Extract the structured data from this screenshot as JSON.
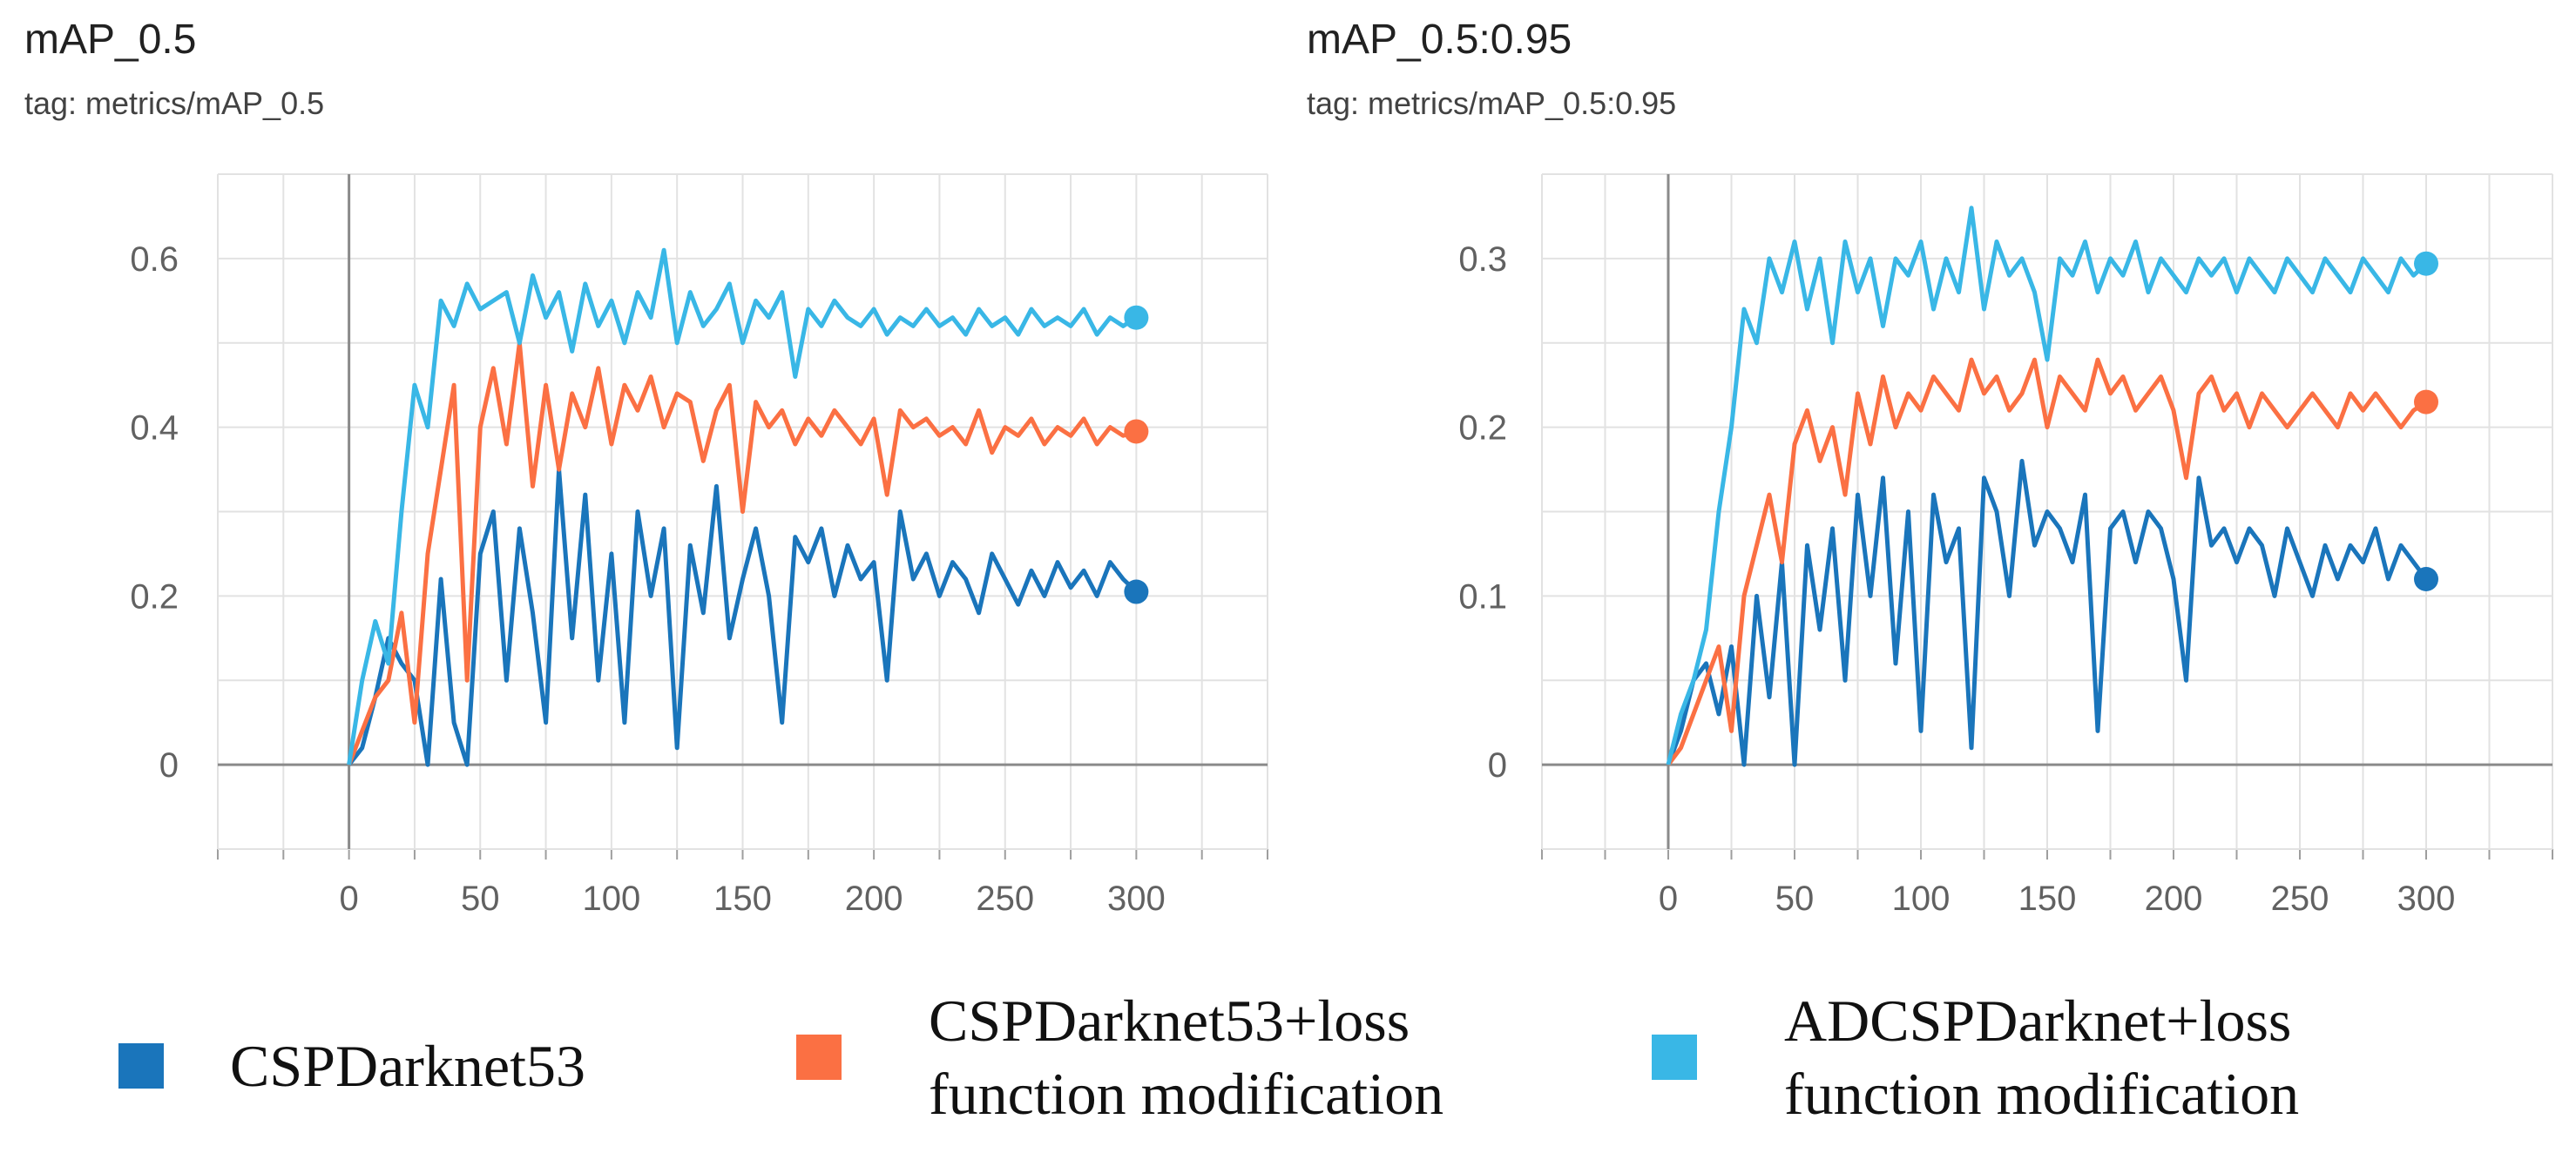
{
  "charts": [
    {
      "title": "mAP_0.5",
      "tag": "tag: metrics/mAP_0.5"
    },
    {
      "title": "mAP_0.5:0.95",
      "tag": "tag: metrics/mAP_0.5:0.95"
    }
  ],
  "legend": [
    {
      "name": "CSPDarknet53",
      "lines": [
        "CSPDarknet53"
      ],
      "color": "#1a75bb"
    },
    {
      "name": "CSPDarknet53+loss function modification",
      "lines": [
        "CSPDarknet53+loss",
        "function modification"
      ],
      "color": "#fb7043"
    },
    {
      "name": "ADCSPDarknet+loss function modification",
      "lines": [
        "ADCSPDarknet+loss",
        "function modification"
      ],
      "color": "#39b7e6"
    }
  ],
  "chart_data": [
    {
      "type": "line",
      "title": "mAP_0.5",
      "subtitle": "tag: metrics/mAP_0.5",
      "xlabel": "",
      "ylabel": "",
      "xlim": [
        -50,
        350
      ],
      "ylim": [
        -0.1,
        0.7
      ],
      "xticks": [
        0,
        50,
        100,
        150,
        200,
        250,
        300
      ],
      "xtick_labels": [
        "0",
        "50",
        "100",
        "150",
        "200",
        "250",
        "300"
      ],
      "yticks": [
        0,
        0.2,
        0.4,
        0.6
      ],
      "ytick_labels": [
        "0",
        "0.2",
        "0.4",
        "0.6"
      ],
      "grid": true,
      "series": [
        {
          "name": "CSPDarknet53",
          "color": "#1a75bb",
          "x": [
            0,
            5,
            10,
            15,
            20,
            25,
            30,
            35,
            40,
            45,
            50,
            55,
            60,
            65,
            70,
            75,
            80,
            85,
            90,
            95,
            100,
            105,
            110,
            115,
            120,
            125,
            130,
            135,
            140,
            145,
            150,
            155,
            160,
            165,
            170,
            175,
            180,
            185,
            190,
            195,
            200,
            205,
            210,
            215,
            220,
            225,
            230,
            235,
            240,
            245,
            250,
            255,
            260,
            265,
            270,
            275,
            280,
            285,
            290,
            295,
            300
          ],
          "values": [
            0.0,
            0.02,
            0.08,
            0.15,
            0.12,
            0.1,
            0.0,
            0.22,
            0.05,
            0.0,
            0.25,
            0.3,
            0.1,
            0.28,
            0.18,
            0.05,
            0.35,
            0.15,
            0.32,
            0.1,
            0.25,
            0.05,
            0.3,
            0.2,
            0.28,
            0.02,
            0.26,
            0.18,
            0.33,
            0.15,
            0.22,
            0.28,
            0.2,
            0.05,
            0.27,
            0.24,
            0.28,
            0.2,
            0.26,
            0.22,
            0.24,
            0.1,
            0.3,
            0.22,
            0.25,
            0.2,
            0.24,
            0.22,
            0.18,
            0.25,
            0.22,
            0.19,
            0.23,
            0.2,
            0.24,
            0.21,
            0.23,
            0.2,
            0.24,
            0.22,
            0.205
          ]
        },
        {
          "name": "CSPDarknet53+loss function modification",
          "color": "#fb7043",
          "x": [
            0,
            5,
            10,
            15,
            20,
            25,
            30,
            35,
            40,
            45,
            50,
            55,
            60,
            65,
            70,
            75,
            80,
            85,
            90,
            95,
            100,
            105,
            110,
            115,
            120,
            125,
            130,
            135,
            140,
            145,
            150,
            155,
            160,
            165,
            170,
            175,
            180,
            185,
            190,
            195,
            200,
            205,
            210,
            215,
            220,
            225,
            230,
            235,
            240,
            245,
            250,
            255,
            260,
            265,
            270,
            275,
            280,
            285,
            290,
            295,
            300
          ],
          "values": [
            0.0,
            0.04,
            0.08,
            0.1,
            0.18,
            0.05,
            0.25,
            0.35,
            0.45,
            0.1,
            0.4,
            0.47,
            0.38,
            0.5,
            0.33,
            0.45,
            0.35,
            0.44,
            0.4,
            0.47,
            0.38,
            0.45,
            0.42,
            0.46,
            0.4,
            0.44,
            0.43,
            0.36,
            0.42,
            0.45,
            0.3,
            0.43,
            0.4,
            0.42,
            0.38,
            0.41,
            0.39,
            0.42,
            0.4,
            0.38,
            0.41,
            0.32,
            0.42,
            0.4,
            0.41,
            0.39,
            0.4,
            0.38,
            0.42,
            0.37,
            0.4,
            0.39,
            0.41,
            0.38,
            0.4,
            0.39,
            0.41,
            0.38,
            0.4,
            0.39,
            0.395
          ]
        },
        {
          "name": "ADCSPDarknet+loss function modification",
          "color": "#39b7e6",
          "x": [
            0,
            5,
            10,
            15,
            20,
            25,
            30,
            35,
            40,
            45,
            50,
            55,
            60,
            65,
            70,
            75,
            80,
            85,
            90,
            95,
            100,
            105,
            110,
            115,
            120,
            125,
            130,
            135,
            140,
            145,
            150,
            155,
            160,
            165,
            170,
            175,
            180,
            185,
            190,
            195,
            200,
            205,
            210,
            215,
            220,
            225,
            230,
            235,
            240,
            245,
            250,
            255,
            260,
            265,
            270,
            275,
            280,
            285,
            290,
            295,
            300
          ],
          "values": [
            0.0,
            0.1,
            0.17,
            0.12,
            0.3,
            0.45,
            0.4,
            0.55,
            0.52,
            0.57,
            0.54,
            0.55,
            0.56,
            0.5,
            0.58,
            0.53,
            0.56,
            0.49,
            0.57,
            0.52,
            0.55,
            0.5,
            0.56,
            0.53,
            0.61,
            0.5,
            0.56,
            0.52,
            0.54,
            0.57,
            0.5,
            0.55,
            0.53,
            0.56,
            0.46,
            0.54,
            0.52,
            0.55,
            0.53,
            0.52,
            0.54,
            0.51,
            0.53,
            0.52,
            0.54,
            0.52,
            0.53,
            0.51,
            0.54,
            0.52,
            0.53,
            0.51,
            0.54,
            0.52,
            0.53,
            0.52,
            0.54,
            0.51,
            0.53,
            0.52,
            0.53
          ]
        }
      ]
    },
    {
      "type": "line",
      "title": "mAP_0.5:0.95",
      "subtitle": "tag: metrics/mAP_0.5:0.95",
      "xlabel": "",
      "ylabel": "",
      "xlim": [
        -50,
        350
      ],
      "ylim": [
        -0.05,
        0.35
      ],
      "xticks": [
        0,
        50,
        100,
        150,
        200,
        250,
        300
      ],
      "xtick_labels": [
        "0",
        "50",
        "100",
        "150",
        "200",
        "250",
        "300"
      ],
      "yticks": [
        0,
        0.1,
        0.2,
        0.3
      ],
      "ytick_labels": [
        "0",
        "0.1",
        "0.2",
        "0.3"
      ],
      "grid": true,
      "series": [
        {
          "name": "CSPDarknet53",
          "color": "#1a75bb",
          "x": [
            0,
            5,
            10,
            15,
            20,
            25,
            30,
            35,
            40,
            45,
            50,
            55,
            60,
            65,
            70,
            75,
            80,
            85,
            90,
            95,
            100,
            105,
            110,
            115,
            120,
            125,
            130,
            135,
            140,
            145,
            150,
            155,
            160,
            165,
            170,
            175,
            180,
            185,
            190,
            195,
            200,
            205,
            210,
            215,
            220,
            225,
            230,
            235,
            240,
            245,
            250,
            255,
            260,
            265,
            270,
            275,
            280,
            285,
            290,
            295,
            300
          ],
          "values": [
            0.0,
            0.02,
            0.05,
            0.06,
            0.03,
            0.07,
            0.0,
            0.1,
            0.04,
            0.12,
            0.0,
            0.13,
            0.08,
            0.14,
            0.05,
            0.16,
            0.1,
            0.17,
            0.06,
            0.15,
            0.02,
            0.16,
            0.12,
            0.14,
            0.01,
            0.17,
            0.15,
            0.1,
            0.18,
            0.13,
            0.15,
            0.14,
            0.12,
            0.16,
            0.02,
            0.14,
            0.15,
            0.12,
            0.15,
            0.14,
            0.11,
            0.05,
            0.17,
            0.13,
            0.14,
            0.12,
            0.14,
            0.13,
            0.1,
            0.14,
            0.12,
            0.1,
            0.13,
            0.11,
            0.13,
            0.12,
            0.14,
            0.11,
            0.13,
            0.12,
            0.11
          ]
        },
        {
          "name": "CSPDarknet53+loss function modification",
          "color": "#fb7043",
          "x": [
            0,
            5,
            10,
            15,
            20,
            25,
            30,
            35,
            40,
            45,
            50,
            55,
            60,
            65,
            70,
            75,
            80,
            85,
            90,
            95,
            100,
            105,
            110,
            115,
            120,
            125,
            130,
            135,
            140,
            145,
            150,
            155,
            160,
            165,
            170,
            175,
            180,
            185,
            190,
            195,
            200,
            205,
            210,
            215,
            220,
            225,
            230,
            235,
            240,
            245,
            250,
            255,
            260,
            265,
            270,
            275,
            280,
            285,
            290,
            295,
            300
          ],
          "values": [
            0.0,
            0.01,
            0.03,
            0.05,
            0.07,
            0.02,
            0.1,
            0.13,
            0.16,
            0.12,
            0.19,
            0.21,
            0.18,
            0.2,
            0.16,
            0.22,
            0.19,
            0.23,
            0.2,
            0.22,
            0.21,
            0.23,
            0.22,
            0.21,
            0.24,
            0.22,
            0.23,
            0.21,
            0.22,
            0.24,
            0.2,
            0.23,
            0.22,
            0.21,
            0.24,
            0.22,
            0.23,
            0.21,
            0.22,
            0.23,
            0.21,
            0.17,
            0.22,
            0.23,
            0.21,
            0.22,
            0.2,
            0.22,
            0.21,
            0.2,
            0.21,
            0.22,
            0.21,
            0.2,
            0.22,
            0.21,
            0.22,
            0.21,
            0.2,
            0.21,
            0.215
          ]
        },
        {
          "name": "ADCSPDarknet+loss function modification",
          "color": "#39b7e6",
          "x": [
            0,
            5,
            10,
            15,
            20,
            25,
            30,
            35,
            40,
            45,
            50,
            55,
            60,
            65,
            70,
            75,
            80,
            85,
            90,
            95,
            100,
            105,
            110,
            115,
            120,
            125,
            130,
            135,
            140,
            145,
            150,
            155,
            160,
            165,
            170,
            175,
            180,
            185,
            190,
            195,
            200,
            205,
            210,
            215,
            220,
            225,
            230,
            235,
            240,
            245,
            250,
            255,
            260,
            265,
            270,
            275,
            280,
            285,
            290,
            295,
            300
          ],
          "values": [
            0.0,
            0.03,
            0.05,
            0.08,
            0.15,
            0.2,
            0.27,
            0.25,
            0.3,
            0.28,
            0.31,
            0.27,
            0.3,
            0.25,
            0.31,
            0.28,
            0.3,
            0.26,
            0.3,
            0.29,
            0.31,
            0.27,
            0.3,
            0.28,
            0.33,
            0.27,
            0.31,
            0.29,
            0.3,
            0.28,
            0.24,
            0.3,
            0.29,
            0.31,
            0.28,
            0.3,
            0.29,
            0.31,
            0.28,
            0.3,
            0.29,
            0.28,
            0.3,
            0.29,
            0.3,
            0.28,
            0.3,
            0.29,
            0.28,
            0.3,
            0.29,
            0.28,
            0.3,
            0.29,
            0.28,
            0.3,
            0.29,
            0.28,
            0.3,
            0.29,
            0.297
          ]
        }
      ]
    }
  ]
}
